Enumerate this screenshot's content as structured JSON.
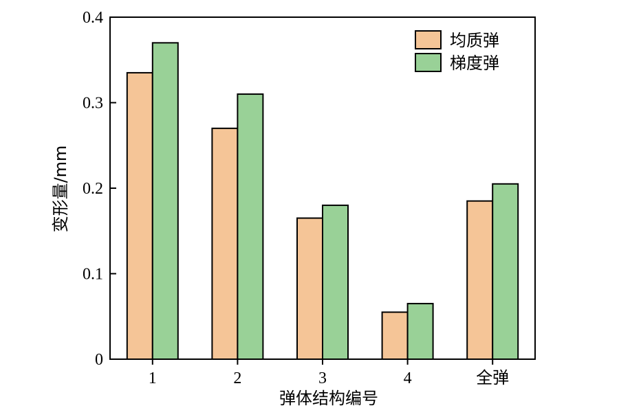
{
  "chart_data": {
    "type": "bar",
    "categories": [
      "1",
      "2",
      "3",
      "4",
      "全弹"
    ],
    "series": [
      {
        "name": "均质弹",
        "values": [
          0.335,
          0.27,
          0.165,
          0.055,
          0.185
        ],
        "color": "#f5c597"
      },
      {
        "name": "梯度弹",
        "values": [
          0.37,
          0.31,
          0.18,
          0.065,
          0.205
        ],
        "color": "#99d197"
      }
    ],
    "xlabel": "弹体结构编号",
    "ylabel": "变形量/mm",
    "ylim": [
      0,
      0.4
    ],
    "yticks": [
      0,
      0.1,
      0.2,
      0.3,
      0.4
    ],
    "ytick_labels": [
      "0",
      "0.1",
      "0.2",
      "0.3",
      "0.4"
    ],
    "grid": false,
    "legend_position": "top-right"
  }
}
